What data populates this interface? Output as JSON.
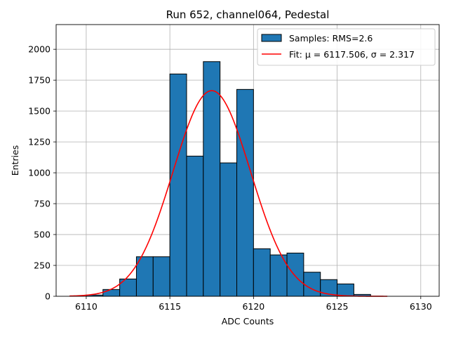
{
  "chart_data": {
    "type": "bar",
    "title": "Run 652, channel064, Pedestal",
    "xlabel": "ADC Counts",
    "ylabel": "Entries",
    "xlim": [
      6108.2,
      6131.1
    ],
    "ylim": [
      0,
      2200
    ],
    "xticks": [
      6110,
      6115,
      6120,
      6125,
      6130
    ],
    "yticks": [
      0,
      250,
      500,
      750,
      1000,
      1250,
      1500,
      1750,
      2000
    ],
    "grid": true,
    "legend_position": "top-right",
    "bin_edges": [
      6110,
      6111,
      6112,
      6113,
      6114,
      6115,
      6116,
      6117,
      6118,
      6119,
      6120,
      6121,
      6122,
      6123,
      6124,
      6125,
      6126,
      6127
    ],
    "series": [
      {
        "name": "Samples: RMS=2.6",
        "type": "histogram",
        "color": "#1f77b4",
        "edgecolor": "#000000",
        "values": [
          10,
          55,
          140,
          320,
          320,
          1800,
          1135,
          1900,
          1080,
          1675,
          385,
          335,
          350,
          195,
          135,
          100,
          15
        ]
      },
      {
        "name": "Fit: μ = 6117.506, σ = 2.317",
        "type": "line",
        "color": "#ff0000",
        "mu": 6117.506,
        "sigma": 2.317,
        "amplitude": 1665,
        "x_range": [
          6109,
          6128
        ]
      }
    ]
  }
}
